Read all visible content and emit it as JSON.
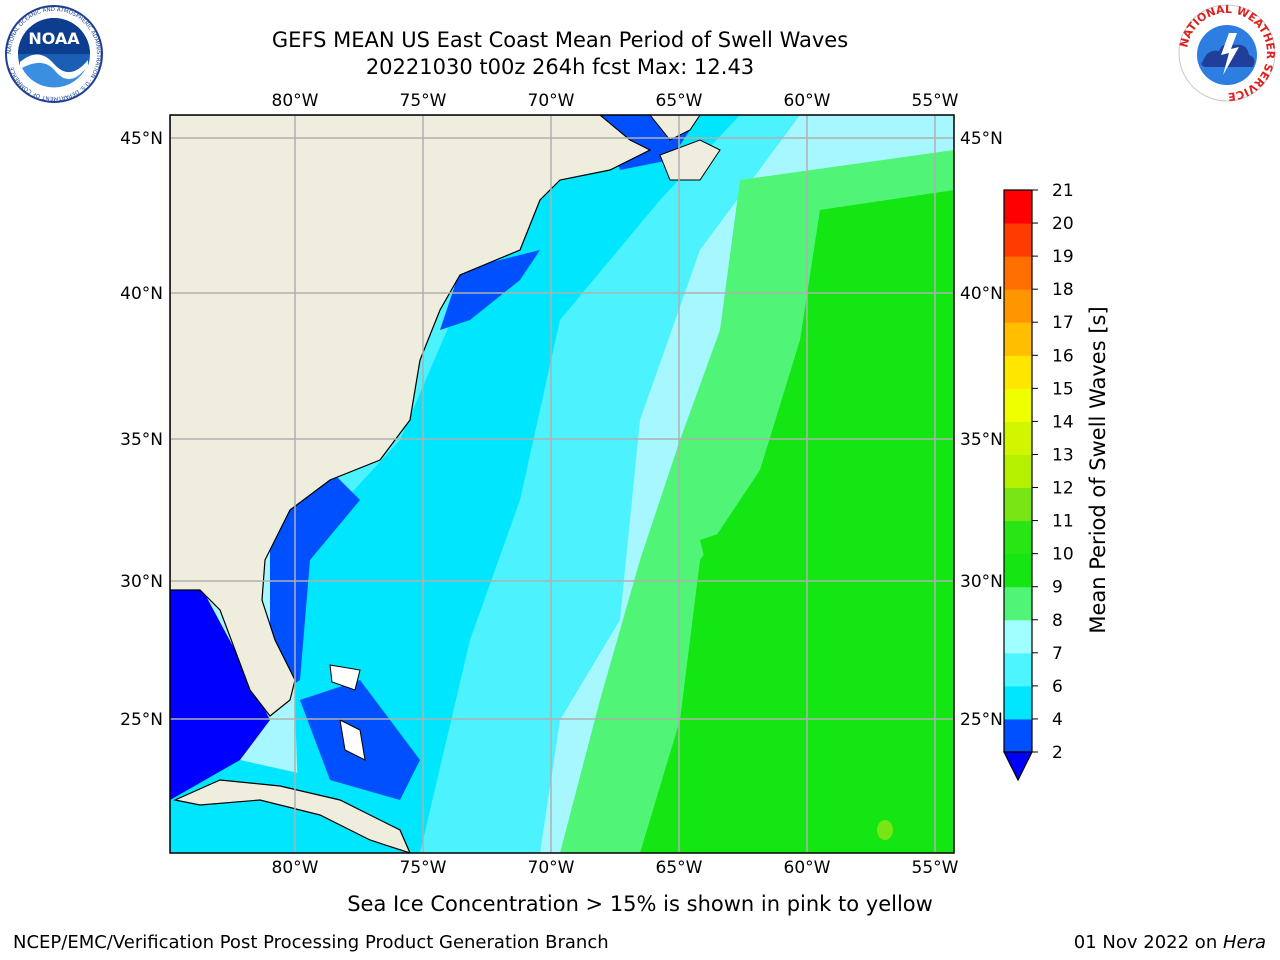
{
  "header": {
    "title_line1": "GEFS MEAN US East Coast Mean Period of Swell Waves",
    "title_line2": "20221030 t00z 264h fcst   Max: 12.43"
  },
  "logos": {
    "noaa_text": "NOAA",
    "noaa_ring": "NATIONAL OCEANIC AND ATMOSPHERIC ADMINISTRATION · U.S. DEPARTMENT OF COMMERCE",
    "nws_ring": "NATIONAL WEATHER SERVICE"
  },
  "map": {
    "lon_labels": [
      "80°W",
      "75°W",
      "70°W",
      "65°W",
      "60°W",
      "55°W"
    ],
    "lat_labels": [
      "45°N",
      "40°N",
      "35°N",
      "30°N",
      "25°N"
    ],
    "colors": {
      "land": "#eeedde",
      "grid": "#b0b0b0",
      "coast": "#000000"
    },
    "note": "Sea Ice Concentration > 15% is shown in pink to yellow"
  },
  "colorbar": {
    "label": "Mean Period of Swell Waves [s]",
    "ticks": [
      "2",
      "4",
      "6",
      "7",
      "8",
      "9",
      "10",
      "11",
      "12",
      "13",
      "14",
      "15",
      "16",
      "17",
      "18",
      "19",
      "20",
      "21"
    ],
    "colors": [
      "#0050ff",
      "#00e6ff",
      "#4cf5ff",
      "#a0ffff",
      "#50f578",
      "#14e614",
      "#28e614",
      "#78e614",
      "#b4f000",
      "#d2f500",
      "#f0ff00",
      "#ffe600",
      "#ffbe00",
      "#ff9600",
      "#ff6e00",
      "#ff3c00",
      "#ff0000"
    ],
    "under_color": "#0000ff"
  },
  "footer": {
    "left": "NCEP/EMC/Verification Post Processing Product Generation Branch",
    "right_date": "01 Nov 2022 on ",
    "right_host": "Hera"
  }
}
